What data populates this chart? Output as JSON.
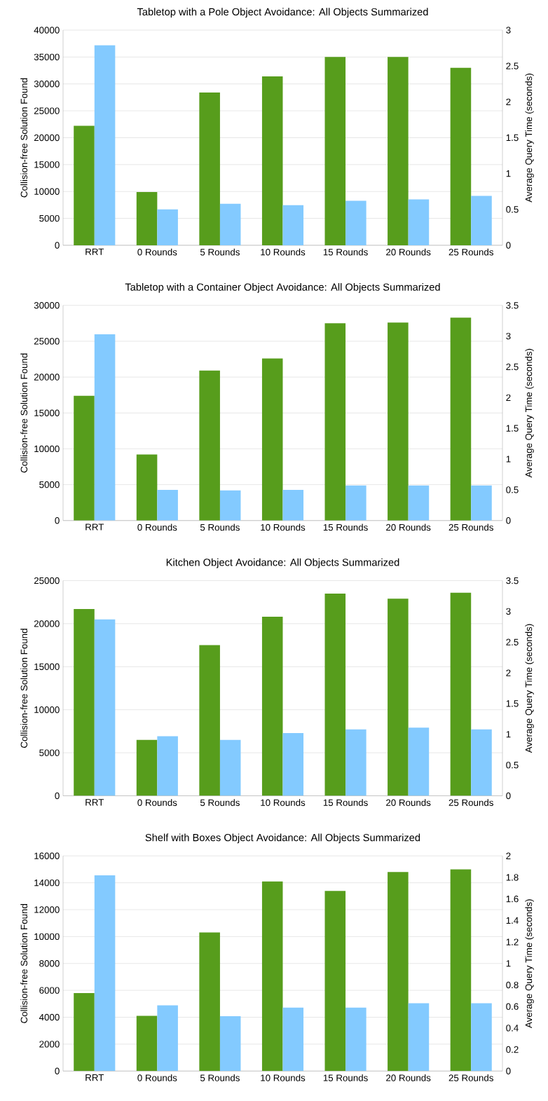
{
  "chart_data": [
    {
      "type": "bar",
      "title": "Tabletop with a Pole Object Avoidance: All Objects Summarized",
      "categories": [
        "RRT",
        "0 Rounds",
        "5 Rounds",
        "10 Rounds",
        "15 Rounds",
        "20 Rounds",
        "25 Rounds"
      ],
      "ylabel": "Collision-free Solution Found",
      "y2label": "Average Query Time (seconds)",
      "ylim": [
        0,
        40000
      ],
      "yticks": [
        0,
        5000,
        10000,
        15000,
        20000,
        25000,
        30000,
        35000,
        40000
      ],
      "y2lim": [
        0,
        3
      ],
      "y2ticks": [
        0,
        0.5,
        1,
        1.5,
        2,
        2.5,
        3
      ],
      "grid": "y",
      "series": [
        {
          "color": "#579d1c",
          "values": [
            22200,
            9900,
            28400,
            31400,
            35000,
            35000,
            33000
          ]
        },
        {
          "color": "#83caff",
          "axis": "y2",
          "values": [
            2.79,
            0.5,
            0.58,
            0.56,
            0.62,
            0.64,
            0.69
          ]
        }
      ]
    },
    {
      "type": "bar",
      "title": "Tabletop with a Container Object Avoidance: All Objects Summarized",
      "categories": [
        "RRT",
        "0 Rounds",
        "5 Rounds",
        "10 Rounds",
        "15 Rounds",
        "20 Rounds",
        "25 Rounds"
      ],
      "ylabel": "Collision-free Solution Found",
      "y2label": "Average Query Time (seconds)",
      "ylim": [
        0,
        30000
      ],
      "yticks": [
        0,
        5000,
        10000,
        15000,
        20000,
        25000,
        30000
      ],
      "y2lim": [
        0,
        3.5
      ],
      "y2ticks": [
        0,
        0.5,
        1,
        1.5,
        2,
        2.5,
        3,
        3.5
      ],
      "grid": "y",
      "series": [
        {
          "color": "#579d1c",
          "values": [
            17400,
            9200,
            20900,
            22600,
            27500,
            27600,
            28300
          ]
        },
        {
          "color": "#83caff",
          "axis": "y2",
          "values": [
            3.03,
            0.5,
            0.49,
            0.5,
            0.57,
            0.57,
            0.57
          ]
        }
      ]
    },
    {
      "type": "bar",
      "title": "Kitchen Object Avoidance: All Objects Summarized",
      "categories": [
        "RRT",
        "0 Rounds",
        "5 Rounds",
        "10 Rounds",
        "15 Rounds",
        "20 Rounds",
        "25 Rounds"
      ],
      "ylabel": "Collision-free Solution Found",
      "y2label": "Average Query Time (seconds)",
      "ylim": [
        0,
        25000
      ],
      "yticks": [
        0,
        5000,
        10000,
        15000,
        20000,
        25000
      ],
      "y2lim": [
        0,
        3.5
      ],
      "y2ticks": [
        0,
        0.5,
        1,
        1.5,
        2,
        2.5,
        3,
        3.5
      ],
      "grid": "y",
      "series": [
        {
          "color": "#579d1c",
          "values": [
            21700,
            6500,
            17500,
            20800,
            23500,
            22900,
            23600
          ]
        },
        {
          "color": "#83caff",
          "axis": "y2",
          "values": [
            2.87,
            0.97,
            0.91,
            1.02,
            1.08,
            1.11,
            1.08
          ]
        }
      ]
    },
    {
      "type": "bar",
      "title": "Shelf with Boxes Object Avoidance: All Objects Summarized",
      "categories": [
        "RRT",
        "0 Rounds",
        "5 Rounds",
        "10 Rounds",
        "15 Rounds",
        "20 Rounds",
        "25 Rounds"
      ],
      "ylabel": "Collision-free Solution Found",
      "y2label": "Average Query Time (seconds)",
      "ylim": [
        0,
        16000
      ],
      "yticks": [
        0,
        2000,
        4000,
        6000,
        8000,
        10000,
        12000,
        14000,
        16000
      ],
      "y2lim": [
        0,
        2
      ],
      "y2ticks": [
        0,
        0.2,
        0.4,
        0.6,
        0.8,
        1,
        1.2,
        1.4,
        1.6,
        1.8,
        2
      ],
      "grid": "y",
      "series": [
        {
          "color": "#579d1c",
          "values": [
            5800,
            4100,
            10300,
            14100,
            13400,
            14800,
            15000
          ]
        },
        {
          "color": "#83caff",
          "axis": "y2",
          "values": [
            1.82,
            0.61,
            0.51,
            0.59,
            0.59,
            0.63,
            0.63
          ]
        }
      ]
    }
  ]
}
